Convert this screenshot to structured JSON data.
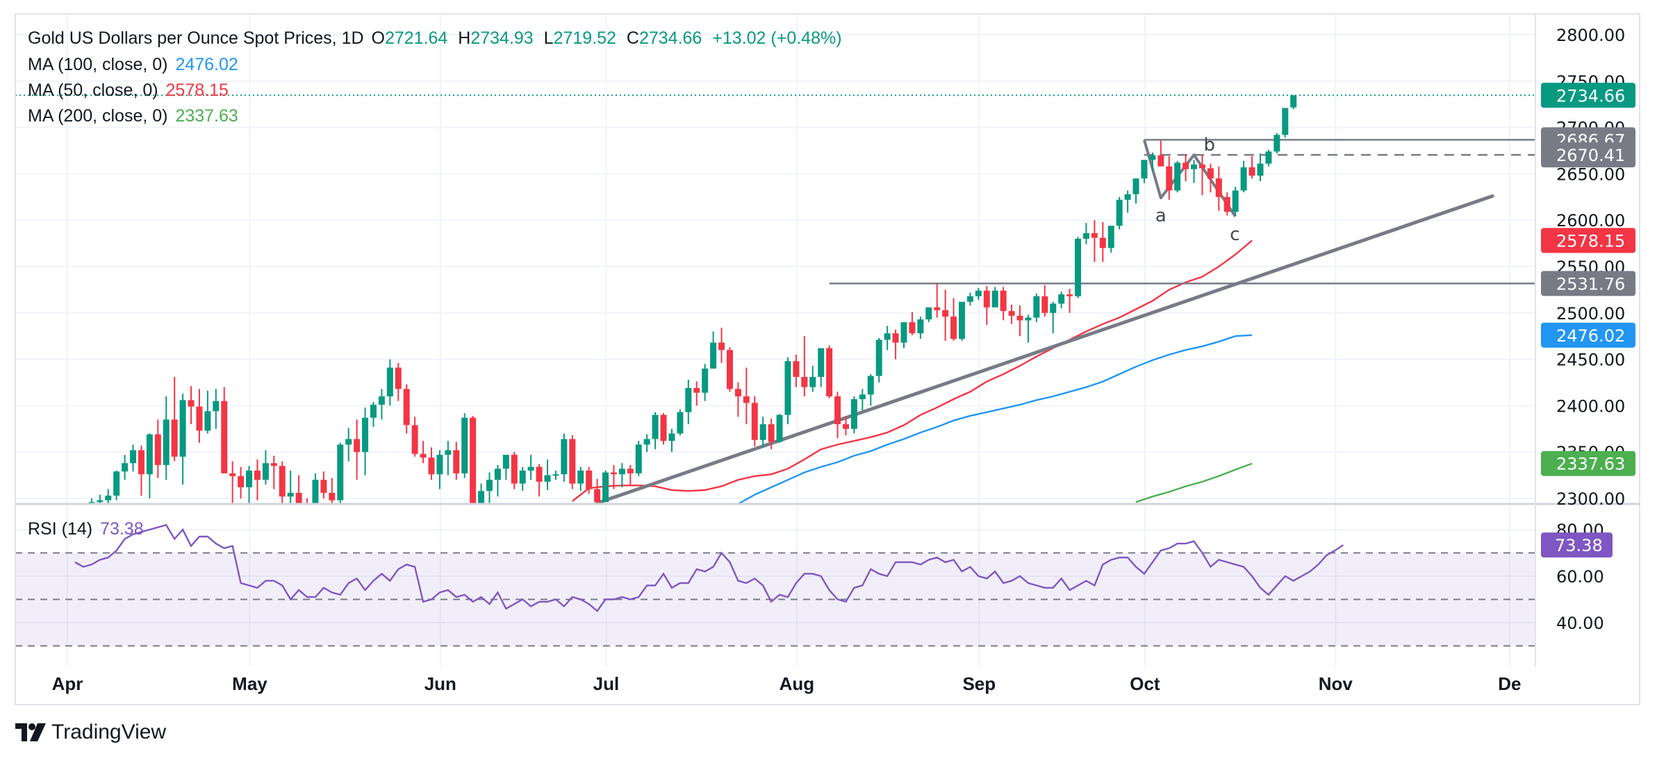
{
  "header": {
    "symbol": "Gold US Dollars per Ounce Spot Prices, 1D",
    "open_label": "O",
    "open": "2721.64",
    "high_label": "H",
    "high": "2734.93",
    "low_label": "L",
    "low": "2719.52",
    "close_label": "C",
    "close": "2734.66",
    "change": "+13.02 (+0.48%)"
  },
  "indicators": [
    {
      "label": "MA (100, close, 0)",
      "value": "2476.02",
      "color": "#2196f3"
    },
    {
      "label": "MA (50, close, 0)",
      "value": "2578.15",
      "color": "#f23645"
    },
    {
      "label": "MA (200, close, 0)",
      "value": "2337.63",
      "color": "#4caf50"
    }
  ],
  "rsi_legend": {
    "label": "RSI (14)",
    "value": "73.38",
    "color": "#7e57c2"
  },
  "price_tags": [
    {
      "name": "last-price-tag",
      "value": 2734.66,
      "text": "2734.66",
      "color": "#089981"
    },
    {
      "name": "resistance-top-tag",
      "value": 2686.67,
      "text": "2686.67",
      "color": "#787b86"
    },
    {
      "name": "wave-b-tag",
      "value": 2670.41,
      "text": "2670.41",
      "color": "#787b86"
    },
    {
      "name": "ma50-tag",
      "value": 2578.15,
      "text": "2578.15",
      "color": "#f23645"
    },
    {
      "name": "breakout-level-tag",
      "value": 2531.76,
      "text": "2531.76",
      "color": "#787b86"
    },
    {
      "name": "ma100-tag",
      "value": 2476.02,
      "text": "2476.02",
      "color": "#2196f3"
    },
    {
      "name": "ma200-tag",
      "value": 2337.63,
      "text": "2337.63",
      "color": "#4caf50"
    }
  ],
  "rsi_tag": {
    "value": 73.38,
    "text": "73.38",
    "color": "#7e57c2"
  },
  "brand": "TradingView",
  "chart_data": {
    "type": "candlestick",
    "title": "Gold US Dollars per Ounce Spot Prices, 1D",
    "price_axis": {
      "ticks": [
        2300,
        2350,
        2400,
        2450,
        2500,
        2550,
        2600,
        2650,
        2700,
        2750,
        2800
      ],
      "range": [
        2296,
        2812
      ]
    },
    "rsi_axis": {
      "ticks": [
        40,
        60,
        80
      ],
      "bands": [
        30,
        50,
        70
      ],
      "range": [
        21,
        91
      ]
    },
    "time_axis": {
      "labels": [
        "Apr",
        "May",
        "Jun",
        "Jul",
        "Aug",
        "Sep",
        "Oct",
        "Nov",
        "De"
      ],
      "month_start_bar": [
        0,
        22,
        45,
        65,
        88,
        110,
        130,
        153,
        174
      ]
    },
    "colors": {
      "up": "#089981",
      "down": "#f23645",
      "ma50": "#f23645",
      "ma100": "#2196f3",
      "ma200": "#4caf50",
      "rsi": "#7e57c2",
      "drawing": "#787b86"
    },
    "candles": [
      [
        2230,
        2268,
        2228,
        2256
      ],
      [
        2256,
        2282,
        2250,
        2282
      ],
      [
        2282,
        2300,
        2275,
        2296
      ],
      [
        2296,
        2304,
        2288,
        2298
      ],
      [
        2298,
        2310,
        2290,
        2303
      ],
      [
        2303,
        2330,
        2298,
        2329
      ],
      [
        2329,
        2347,
        2320,
        2338
      ],
      [
        2338,
        2358,
        2329,
        2352
      ],
      [
        2352,
        2357,
        2303,
        2326
      ],
      [
        2326,
        2370,
        2300,
        2369
      ],
      [
        2369,
        2385,
        2322,
        2336
      ],
      [
        2336,
        2410,
        2320,
        2385
      ],
      [
        2385,
        2431,
        2340,
        2345
      ],
      [
        2345,
        2413,
        2315,
        2406
      ],
      [
        2406,
        2421,
        2380,
        2399
      ],
      [
        2399,
        2418,
        2360,
        2373
      ],
      [
        2373,
        2416,
        2370,
        2394
      ],
      [
        2394,
        2418,
        2375,
        2405
      ],
      [
        2405,
        2420,
        2335,
        2327
      ],
      [
        2327,
        2340,
        2292,
        2324
      ],
      [
        2324,
        2334,
        2300,
        2312
      ],
      [
        2312,
        2335,
        2288,
        2330
      ],
      [
        2330,
        2342,
        2298,
        2320
      ],
      [
        2320,
        2352,
        2315,
        2338
      ],
      [
        2338,
        2346,
        2310,
        2335
      ],
      [
        2335,
        2340,
        2292,
        2302
      ],
      [
        2302,
        2330,
        2285,
        2306
      ],
      [
        2306,
        2325,
        2290,
        2293
      ],
      [
        2293,
        2300,
        2277,
        2289
      ],
      [
        2289,
        2327,
        2280,
        2320
      ],
      [
        2320,
        2329,
        2300,
        2306
      ],
      [
        2306,
        2322,
        2286,
        2298
      ],
      [
        2298,
        2360,
        2295,
        2358
      ],
      [
        2358,
        2376,
        2340,
        2364
      ],
      [
        2364,
        2385,
        2320,
        2350
      ],
      [
        2350,
        2398,
        2325,
        2387
      ],
      [
        2387,
        2404,
        2377,
        2401
      ],
      [
        2401,
        2418,
        2385,
        2410
      ],
      [
        2410,
        2450,
        2400,
        2441
      ],
      [
        2441,
        2446,
        2405,
        2418
      ],
      [
        2418,
        2423,
        2370,
        2379
      ],
      [
        2379,
        2388,
        2345,
        2348
      ],
      [
        2348,
        2362,
        2338,
        2344
      ],
      [
        2344,
        2355,
        2320,
        2326
      ],
      [
        2326,
        2352,
        2310,
        2347
      ],
      [
        2347,
        2362,
        2325,
        2352
      ],
      [
        2352,
        2361,
        2320,
        2327
      ],
      [
        2327,
        2392,
        2322,
        2387
      ],
      [
        2387,
        2389,
        2288,
        2294
      ],
      [
        2294,
        2316,
        2285,
        2308
      ],
      [
        2308,
        2328,
        2295,
        2320
      ],
      [
        2320,
        2336,
        2302,
        2332
      ],
      [
        2332,
        2346,
        2320,
        2347
      ],
      [
        2347,
        2350,
        2310,
        2316
      ],
      [
        2316,
        2334,
        2308,
        2330
      ],
      [
        2330,
        2347,
        2320,
        2334
      ],
      [
        2334,
        2337,
        2302,
        2318
      ],
      [
        2318,
        2342,
        2309,
        2325
      ],
      [
        2325,
        2330,
        2320,
        2326
      ],
      [
        2326,
        2370,
        2318,
        2364
      ],
      [
        2364,
        2368,
        2310,
        2316
      ],
      [
        2316,
        2334,
        2308,
        2330
      ],
      [
        2330,
        2334,
        2305,
        2310
      ],
      [
        2310,
        2321,
        2293,
        2296
      ],
      [
        2296,
        2330,
        2296,
        2328
      ],
      [
        2328,
        2336,
        2310,
        2326
      ],
      [
        2326,
        2338,
        2312,
        2332
      ],
      [
        2332,
        2336,
        2315,
        2327
      ],
      [
        2327,
        2362,
        2324,
        2358
      ],
      [
        2358,
        2369,
        2350,
        2364
      ],
      [
        2364,
        2393,
        2353,
        2390
      ],
      [
        2390,
        2392,
        2358,
        2362
      ],
      [
        2362,
        2375,
        2350,
        2370
      ],
      [
        2370,
        2396,
        2368,
        2393
      ],
      [
        2393,
        2428,
        2380,
        2419
      ],
      [
        2419,
        2426,
        2400,
        2414
      ],
      [
        2414,
        2445,
        2405,
        2440
      ],
      [
        2440,
        2480,
        2440,
        2468
      ],
      [
        2468,
        2484,
        2446,
        2460
      ],
      [
        2460,
        2463,
        2415,
        2418
      ],
      [
        2418,
        2425,
        2388,
        2410
      ],
      [
        2410,
        2441,
        2380,
        2403
      ],
      [
        2403,
        2410,
        2356,
        2363
      ],
      [
        2363,
        2388,
        2355,
        2380
      ],
      [
        2380,
        2386,
        2353,
        2361
      ],
      [
        2361,
        2391,
        2360,
        2390
      ],
      [
        2390,
        2452,
        2380,
        2448
      ],
      [
        2448,
        2455,
        2420,
        2431
      ],
      [
        2431,
        2475,
        2410,
        2420
      ],
      [
        2420,
        2443,
        2415,
        2431
      ],
      [
        2431,
        2460,
        2420,
        2462
      ],
      [
        2462,
        2465,
        2408,
        2410
      ],
      [
        2410,
        2415,
        2365,
        2380
      ],
      [
        2380,
        2389,
        2368,
        2375
      ],
      [
        2375,
        2410,
        2370,
        2407
      ],
      [
        2407,
        2418,
        2395,
        2412
      ],
      [
        2412,
        2434,
        2400,
        2432
      ],
      [
        2432,
        2473,
        2425,
        2471
      ],
      [
        2471,
        2486,
        2460,
        2478
      ],
      [
        2478,
        2482,
        2450,
        2468
      ],
      [
        2468,
        2490,
        2462,
        2490
      ],
      [
        2490,
        2501,
        2476,
        2478
      ],
      [
        2478,
        2496,
        2472,
        2493
      ],
      [
        2493,
        2505,
        2490,
        2506
      ],
      [
        2506,
        2532,
        2495,
        2503
      ],
      [
        2503,
        2525,
        2470,
        2496
      ],
      [
        2496,
        2516,
        2470,
        2472
      ],
      [
        2472,
        2506,
        2470,
        2512
      ],
      [
        2512,
        2522,
        2508,
        2518
      ],
      [
        2518,
        2527,
        2514,
        2524
      ],
      [
        2524,
        2529,
        2487,
        2506
      ],
      [
        2506,
        2528,
        2506,
        2524
      ],
      [
        2524,
        2528,
        2492,
        2502
      ],
      [
        2502,
        2509,
        2488,
        2497
      ],
      [
        2497,
        2508,
        2475,
        2492
      ],
      [
        2492,
        2498,
        2468,
        2495
      ],
      [
        2495,
        2521,
        2490,
        2518
      ],
      [
        2518,
        2530,
        2496,
        2500
      ],
      [
        2500,
        2512,
        2478,
        2510
      ],
      [
        2510,
        2523,
        2505,
        2520
      ],
      [
        2520,
        2526,
        2500,
        2518
      ],
      [
        2518,
        2582,
        2516,
        2580
      ],
      [
        2580,
        2597,
        2574,
        2586
      ],
      [
        2586,
        2600,
        2555,
        2581
      ],
      [
        2581,
        2598,
        2555,
        2570
      ],
      [
        2570,
        2590,
        2565,
        2594
      ],
      [
        2594,
        2625,
        2590,
        2622
      ],
      [
        2622,
        2632,
        2608,
        2628
      ],
      [
        2628,
        2643,
        2618,
        2645
      ],
      [
        2645,
        2659,
        2640,
        2665
      ],
      [
        2665,
        2673,
        2653,
        2670
      ],
      [
        2670,
        2686,
        2664,
        2658
      ],
      [
        2658,
        2669,
        2622,
        2632
      ],
      [
        2632,
        2664,
        2630,
        2662
      ],
      [
        2662,
        2671,
        2642,
        2655
      ],
      [
        2655,
        2665,
        2640,
        2660
      ],
      [
        2660,
        2670,
        2627,
        2656
      ],
      [
        2656,
        2661,
        2630,
        2645
      ],
      [
        2645,
        2658,
        2610,
        2625
      ],
      [
        2625,
        2630,
        2605,
        2609
      ],
      [
        2609,
        2636,
        2605,
        2632
      ],
      [
        2632,
        2664,
        2630,
        2657
      ],
      [
        2657,
        2669,
        2645,
        2648
      ],
      [
        2648,
        2672,
        2642,
        2661
      ],
      [
        2661,
        2676,
        2658,
        2674
      ],
      [
        2674,
        2694,
        2672,
        2692
      ],
      [
        2692,
        2718,
        2689,
        2721
      ],
      [
        2721.64,
        2734.93,
        2719.52,
        2734.66
      ]
    ],
    "ma50": [
      [
        60,
        2297
      ],
      [
        62,
        2311
      ],
      [
        64,
        2313
      ],
      [
        66,
        2314
      ],
      [
        68,
        2314
      ],
      [
        70,
        2313
      ],
      [
        72,
        2309
      ],
      [
        74,
        2308
      ],
      [
        76,
        2309
      ],
      [
        78,
        2313
      ],
      [
        80,
        2320
      ],
      [
        82,
        2324
      ],
      [
        84,
        2326
      ],
      [
        86,
        2332
      ],
      [
        88,
        2342
      ],
      [
        90,
        2353
      ],
      [
        92,
        2358
      ],
      [
        94,
        2362
      ],
      [
        96,
        2366
      ],
      [
        98,
        2371
      ],
      [
        100,
        2379
      ],
      [
        102,
        2390
      ],
      [
        104,
        2398
      ],
      [
        106,
        2407
      ],
      [
        108,
        2415
      ],
      [
        110,
        2426
      ],
      [
        112,
        2434
      ],
      [
        114,
        2443
      ],
      [
        116,
        2453
      ],
      [
        118,
        2462
      ],
      [
        120,
        2471
      ],
      [
        122,
        2480
      ],
      [
        124,
        2488
      ],
      [
        126,
        2495
      ],
      [
        128,
        2504
      ],
      [
        130,
        2513
      ],
      [
        132,
        2525
      ],
      [
        134,
        2533
      ],
      [
        136,
        2539
      ],
      [
        138,
        2550
      ],
      [
        140,
        2563
      ],
      [
        142,
        2578.15
      ]
    ],
    "ma100": [
      [
        80,
        2294
      ],
      [
        82,
        2304
      ],
      [
        84,
        2312
      ],
      [
        86,
        2320
      ],
      [
        88,
        2328
      ],
      [
        90,
        2334
      ],
      [
        92,
        2339
      ],
      [
        94,
        2346
      ],
      [
        96,
        2351
      ],
      [
        98,
        2358
      ],
      [
        100,
        2364
      ],
      [
        102,
        2371
      ],
      [
        104,
        2377
      ],
      [
        106,
        2384
      ],
      [
        108,
        2389
      ],
      [
        110,
        2393
      ],
      [
        112,
        2397
      ],
      [
        114,
        2401
      ],
      [
        116,
        2406
      ],
      [
        118,
        2410
      ],
      [
        120,
        2415
      ],
      [
        122,
        2420
      ],
      [
        124,
        2426
      ],
      [
        126,
        2434
      ],
      [
        128,
        2442
      ],
      [
        130,
        2449
      ],
      [
        132,
        2455
      ],
      [
        134,
        2460
      ],
      [
        136,
        2464
      ],
      [
        138,
        2469
      ],
      [
        140,
        2475
      ],
      [
        142,
        2476.02
      ]
    ],
    "ma200": [
      [
        128,
        2296
      ],
      [
        130,
        2302
      ],
      [
        132,
        2307
      ],
      [
        134,
        2313
      ],
      [
        136,
        2318
      ],
      [
        138,
        2324
      ],
      [
        140,
        2331
      ],
      [
        142,
        2337.63
      ]
    ],
    "rsi": [
      66,
      64,
      65,
      67,
      68,
      71,
      76,
      78,
      79,
      80,
      81,
      82,
      76,
      80,
      73,
      77,
      77,
      74,
      72,
      73,
      57,
      56,
      55,
      58,
      58,
      56,
      50,
      54,
      51,
      51,
      55,
      53,
      52,
      57,
      59,
      54,
      58,
      61,
      58,
      63,
      65,
      64,
      49,
      50,
      53,
      54,
      51,
      52,
      49,
      51,
      48,
      53,
      46,
      48,
      50,
      47,
      49,
      49,
      50,
      47,
      51,
      50,
      48,
      45,
      50,
      50,
      51,
      50,
      51,
      56,
      56,
      61,
      55,
      57,
      57,
      63,
      62,
      64,
      70,
      66,
      58,
      57,
      59,
      56,
      49,
      52,
      51,
      57,
      61,
      61,
      60,
      54,
      50,
      49,
      55,
      56,
      63,
      61,
      60,
      66,
      66,
      66,
      65,
      67,
      68,
      66,
      67,
      62,
      64,
      60,
      59,
      62,
      57,
      58,
      60,
      57,
      56,
      55,
      55,
      59,
      54,
      56,
      58,
      56,
      65,
      67,
      68,
      68,
      64,
      61,
      66,
      71,
      72,
      74,
      74,
      75,
      70,
      64,
      67,
      66,
      65,
      64,
      60,
      55,
      52,
      56,
      60,
      58,
      60,
      62,
      65,
      69,
      71,
      73.38
    ],
    "drawings": {
      "trendline": {
        "from": {
          "bar": 63,
          "price": 2295
        },
        "to": {
          "bar": 171,
          "price": 2626
        }
      },
      "horizontal_levels": [
        {
          "from_bar": 91,
          "price": 2531.76,
          "style": "solid"
        },
        {
          "from_bar": 129,
          "price": 2686.67,
          "style": "solid"
        },
        {
          "from_bar": 129,
          "price": 2670.41,
          "style": "dashed"
        }
      ],
      "abc_wave": [
        {
          "bar": 129,
          "price": 2686.67,
          "label": ""
        },
        {
          "bar": 131,
          "price": 2624,
          "label": "a"
        },
        {
          "bar": 135,
          "price": 2670.41,
          "label": "b"
        },
        {
          "bar": 140,
          "price": 2604,
          "label": "c"
        }
      ]
    }
  }
}
